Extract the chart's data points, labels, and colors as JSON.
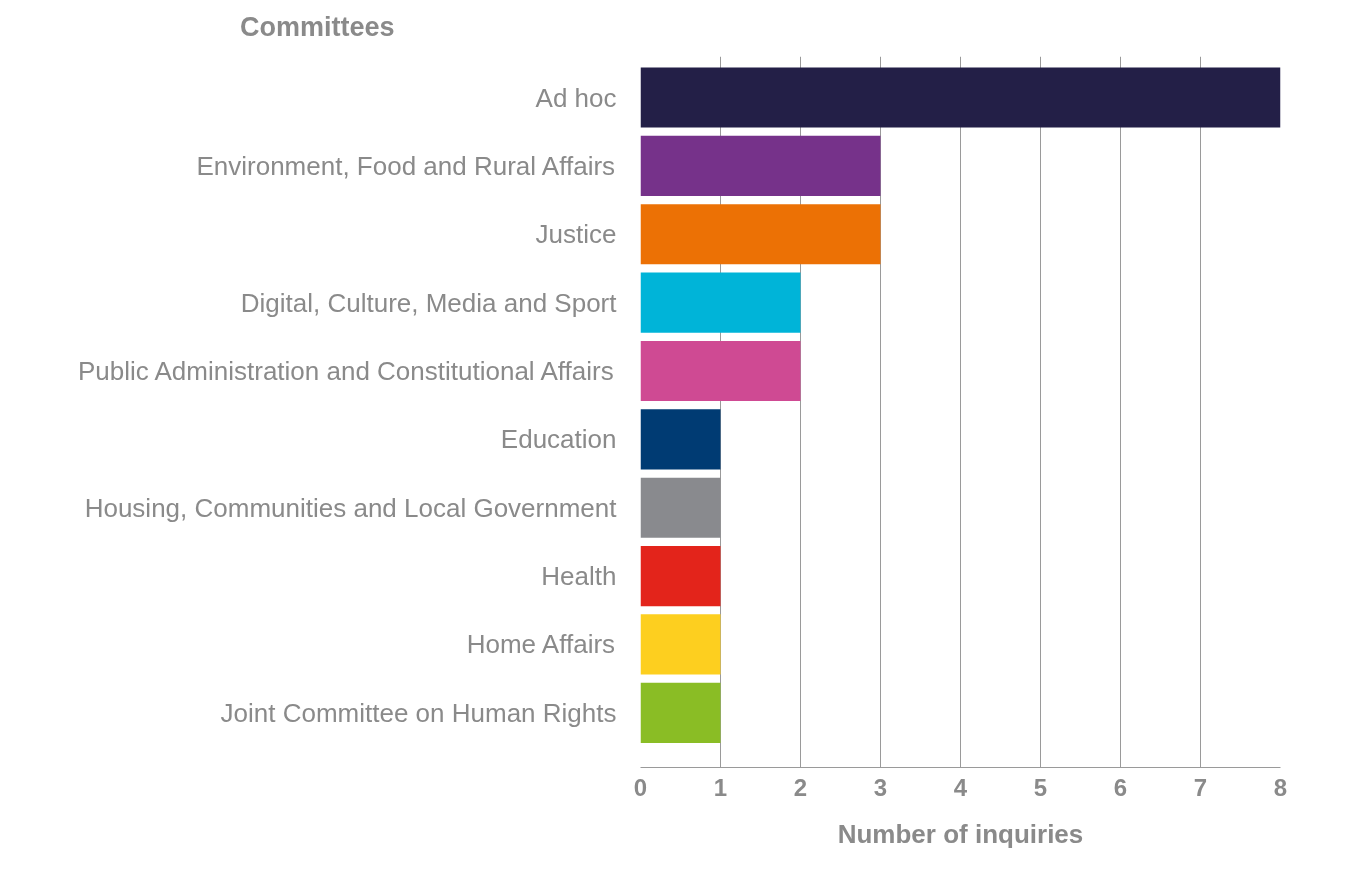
{
  "chart_data": {
    "type": "bar",
    "orientation": "horizontal",
    "ylabel": "Committees",
    "xlabel": "Number of inquiries",
    "categories": [
      "Ad hoc",
      "Environment, Food and Rural Affairs",
      "Justice",
      "Digital, Culture, Media and Sport",
      "Public Administration and Constitutional Affairs",
      "Education",
      "Housing, Communities and Local Government",
      "Health",
      "Home Affairs",
      "Joint Committee on Human Rights"
    ],
    "values": [
      8,
      3,
      3,
      2,
      2,
      1,
      1,
      1,
      1,
      1
    ],
    "colors": [
      "#231f47",
      "#76328a",
      "#ec7105",
      "#00b4d8",
      "#cf4a93",
      "#003b73",
      "#898a8e",
      "#e3241b",
      "#fdcf1f",
      "#8abd25"
    ],
    "xlim": [
      0,
      8
    ],
    "xticks": [
      0,
      1,
      2,
      3,
      4,
      5,
      6,
      7,
      8
    ],
    "grid": "x"
  }
}
